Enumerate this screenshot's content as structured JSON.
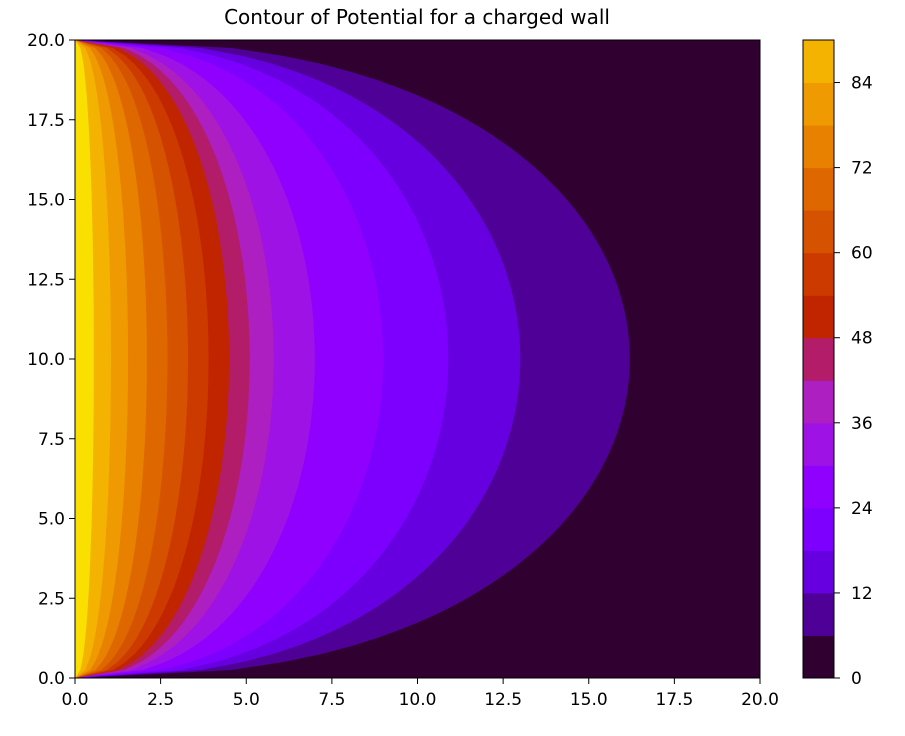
{
  "chart_data": {
    "type": "contour",
    "title": "Contour of Potential for a charged wall",
    "xlabel": "",
    "ylabel": "",
    "xlim": [
      0,
      20
    ],
    "ylim": [
      0,
      20
    ],
    "x_ticks": [
      "0.0",
      "2.5",
      "5.0",
      "7.5",
      "10.0",
      "12.5",
      "15.0",
      "17.5",
      "20.0"
    ],
    "y_ticks": [
      "0.0",
      "2.5",
      "5.0",
      "7.5",
      "10.0",
      "12.5",
      "15.0",
      "17.5",
      "20.0"
    ],
    "colorbar": {
      "colormap": "gnuplot",
      "levels": [
        0,
        6,
        12,
        18,
        24,
        30,
        36,
        42,
        48,
        54,
        60,
        66,
        72,
        78,
        84,
        90
      ],
      "tick_labels": [
        "0",
        "12",
        "24",
        "36",
        "48",
        "60",
        "72",
        "84"
      ],
      "level_colors": [
        "#2f0030",
        "#4f0096",
        "#6700e0",
        "#7d00ff",
        "#8f00ff",
        "#9f12e6",
        "#ad1fc0",
        "#b21c68",
        "#c12500",
        "#cc3a00",
        "#d55200",
        "#de6700",
        "#e88000",
        "#ef9a00",
        "#f4b300",
        "#f9e000"
      ]
    },
    "field": {
      "description_of_model": "potential decays away from charged wall at x=0; level boundary x-extents at y=10",
      "boundary_x_at_midline": [
        16.2,
        13.0,
        10.9,
        9.0,
        7.0,
        5.8,
        5.1,
        4.5,
        3.9,
        3.3,
        2.7,
        2.1,
        1.55,
        1.05,
        0.55
      ]
    },
    "grid": false
  }
}
